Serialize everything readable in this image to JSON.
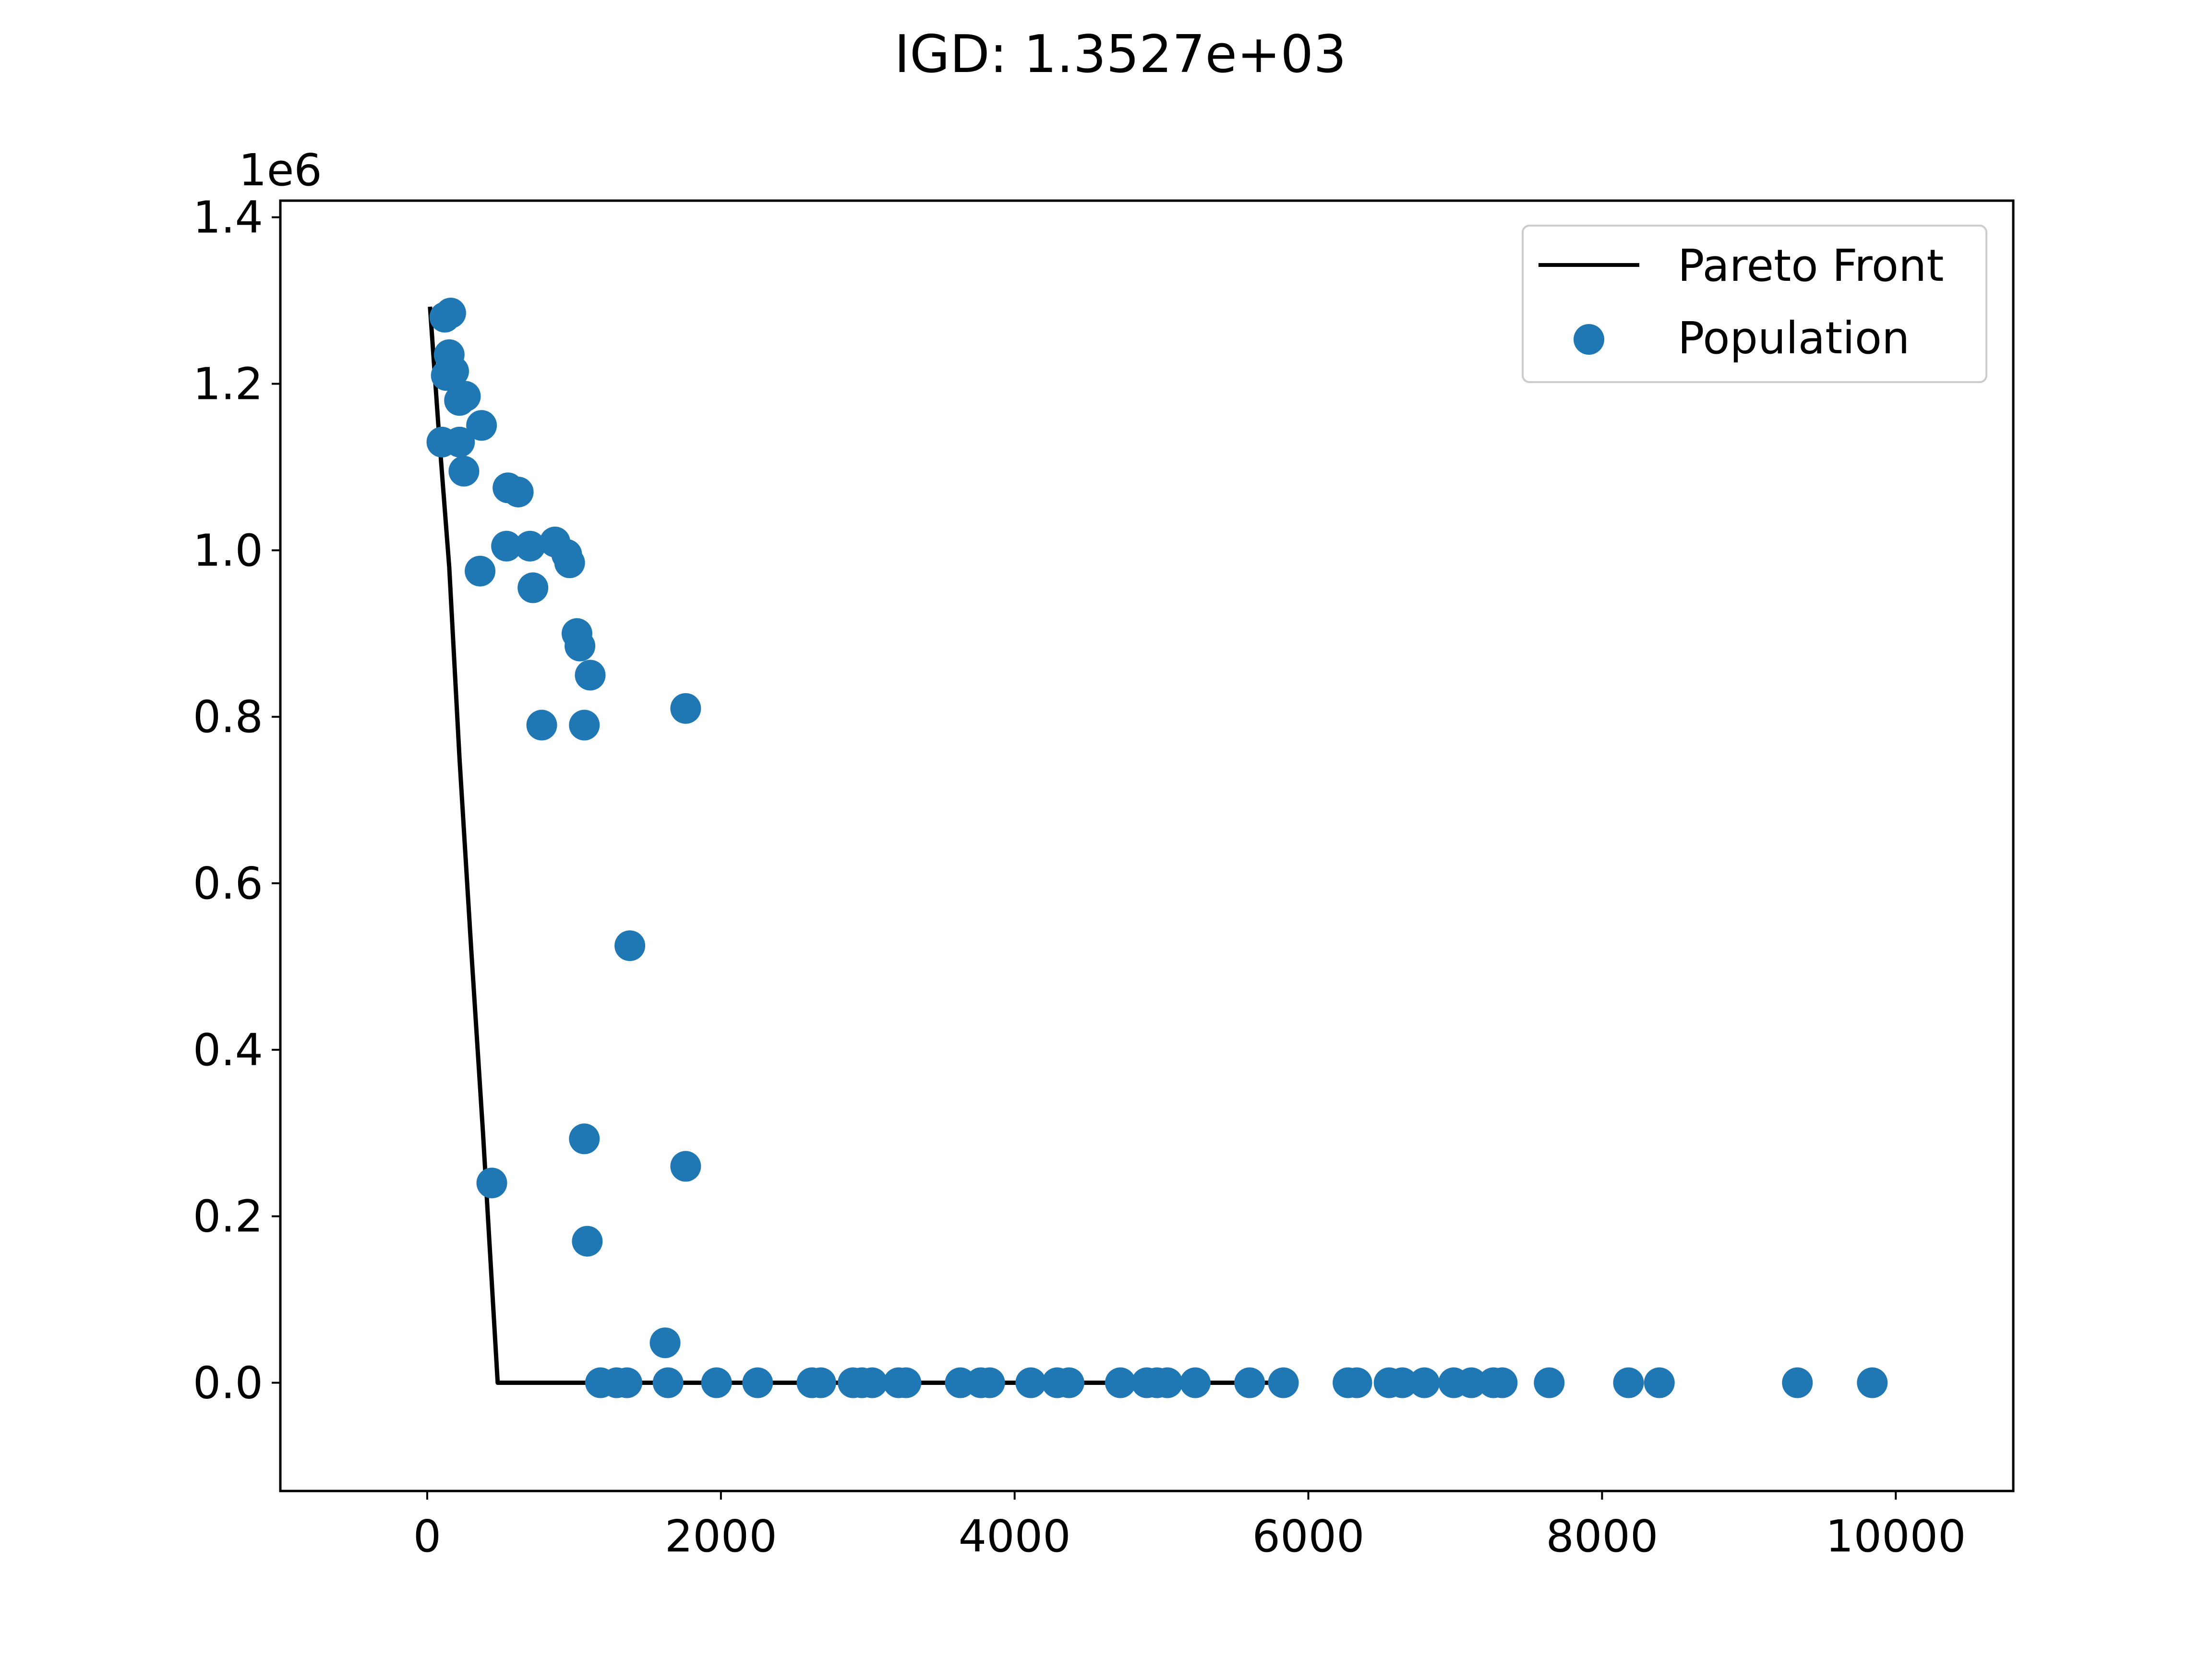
{
  "chart_data": {
    "type": "scatter",
    "title": "IGD: 1.3527e+03",
    "xlabel": "",
    "ylabel": "",
    "xlim": [
      -1000,
      10800
    ],
    "ylim": [
      -130000,
      1420000
    ],
    "y_offset_label": "1e6",
    "xticks": [
      0,
      2000,
      4000,
      6000,
      8000,
      10000
    ],
    "xtick_labels": [
      "0",
      "2000",
      "4000",
      "6000",
      "8000",
      "10000"
    ],
    "yticks": [
      0,
      200000,
      400000,
      600000,
      800000,
      1000000,
      1200000,
      1400000
    ],
    "ytick_labels": [
      "0.0",
      "0.2",
      "0.4",
      "0.6",
      "0.8",
      "1.0",
      "1.2",
      "1.4"
    ],
    "grid": false,
    "legend_position": "top-right",
    "colors": {
      "pareto": "#000000",
      "population": "#1f77b4"
    },
    "series": [
      {
        "name": "Pareto Front",
        "type": "line",
        "points": [
          [
            20,
            1290000
          ],
          [
            80,
            1140000
          ],
          [
            150,
            980000
          ],
          [
            220,
            750000
          ],
          [
            300,
            520000
          ],
          [
            380,
            300000
          ],
          [
            440,
            120000
          ],
          [
            480,
            0
          ],
          [
            5850,
            0
          ]
        ]
      },
      {
        "name": "Population",
        "type": "scatter",
        "points": [
          [
            160,
            1285000
          ],
          [
            120,
            1280000
          ],
          [
            150,
            1235000
          ],
          [
            130,
            1210000
          ],
          [
            180,
            1215000
          ],
          [
            260,
            1185000
          ],
          [
            220,
            1180000
          ],
          [
            370,
            1150000
          ],
          [
            100,
            1130000
          ],
          [
            220,
            1130000
          ],
          [
            250,
            1095000
          ],
          [
            550,
            1075000
          ],
          [
            620,
            1070000
          ],
          [
            540,
            1005000
          ],
          [
            700,
            1005000
          ],
          [
            870,
            1010000
          ],
          [
            950,
            995000
          ],
          [
            970,
            985000
          ],
          [
            360,
            975000
          ],
          [
            720,
            955000
          ],
          [
            1020,
            900000
          ],
          [
            1040,
            885000
          ],
          [
            1110,
            850000
          ],
          [
            780,
            790000
          ],
          [
            1070,
            790000
          ],
          [
            1760,
            810000
          ],
          [
            1380,
            525000
          ],
          [
            1070,
            293000
          ],
          [
            1760,
            260000
          ],
          [
            440,
            240000
          ],
          [
            1090,
            170000
          ],
          [
            1620,
            48000
          ],
          [
            1180,
            0
          ],
          [
            1290,
            0
          ],
          [
            1360,
            0
          ],
          [
            1640,
            0
          ],
          [
            1970,
            0
          ],
          [
            2250,
            0
          ],
          [
            2620,
            0
          ],
          [
            2680,
            0
          ],
          [
            2900,
            0
          ],
          [
            2960,
            0
          ],
          [
            3030,
            0
          ],
          [
            3210,
            0
          ],
          [
            3260,
            0
          ],
          [
            3630,
            0
          ],
          [
            3770,
            0
          ],
          [
            3830,
            0
          ],
          [
            4110,
            0
          ],
          [
            4290,
            0
          ],
          [
            4370,
            0
          ],
          [
            4720,
            0
          ],
          [
            4900,
            0
          ],
          [
            4970,
            0
          ],
          [
            5040,
            0
          ],
          [
            5230,
            0
          ],
          [
            5600,
            0
          ],
          [
            5830,
            0
          ],
          [
            6270,
            0
          ],
          [
            6330,
            0
          ],
          [
            6550,
            0
          ],
          [
            6640,
            0
          ],
          [
            6790,
            0
          ],
          [
            6990,
            0
          ],
          [
            7110,
            0
          ],
          [
            7260,
            0
          ],
          [
            7320,
            0
          ],
          [
            7640,
            0
          ],
          [
            8180,
            0
          ],
          [
            8390,
            0
          ],
          [
            9330,
            0
          ],
          [
            9840,
            0
          ]
        ]
      }
    ]
  }
}
